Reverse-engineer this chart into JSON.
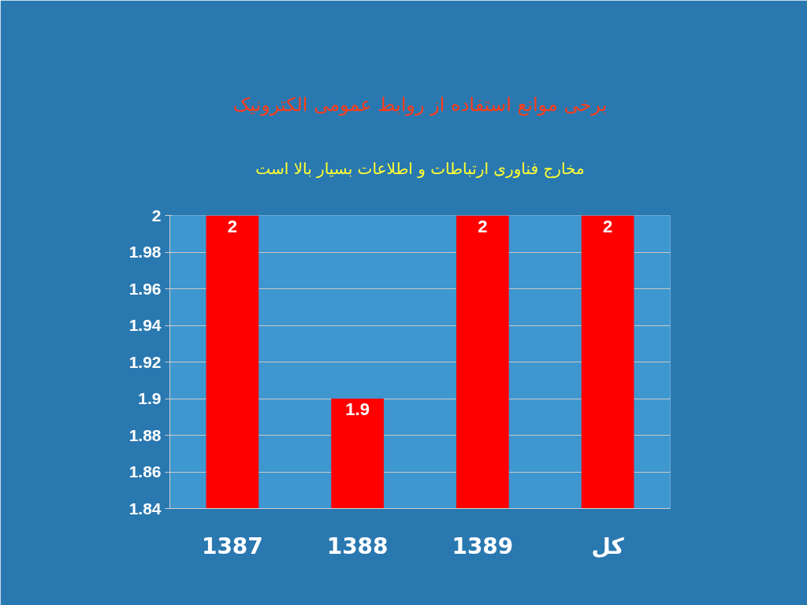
{
  "chart_data": {
    "type": "bar",
    "title": "برخی موانع استفاده از روابط عمومی الکترونیک",
    "subtitle": "مخارج فناوری ارتباطات و اطلاعات بسیار بالا است",
    "categories": [
      "1387",
      "1388",
      "1389",
      "کل"
    ],
    "values": [
      2,
      1.9,
      2,
      2
    ],
    "color": "#ff0000",
    "ylim": [
      1.84,
      2
    ],
    "yticks": [
      1.84,
      1.86,
      1.88,
      1.9,
      1.92,
      1.94,
      1.96,
      1.98,
      2
    ],
    "grid": "y",
    "data_labels": true
  }
}
